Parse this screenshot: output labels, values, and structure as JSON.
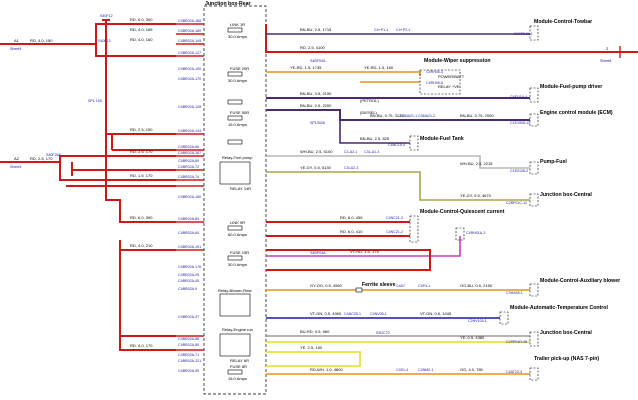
{
  "junction_box_rear": {
    "title": "Junction box-Rear",
    "connector_labels": [
      "C4BR02A-168",
      "C4BR02A-180",
      "C4BR02A-149",
      "C4BR02A-127",
      "C4BR02A-100",
      "C4BR02A-170",
      "C4BR02A-128",
      "C4BR02A-143",
      "C4BR02A-66",
      "C4BR02A-167",
      "C4BR02A-69",
      "C4BR02A-72",
      "C4BR02A-74",
      "C4BR02A-160",
      "C4BR02A-84",
      "C4BR02A-64",
      "C4BR02A-101",
      "C4BR02A-176",
      "C4BR02A-25",
      "C4BR02A-45",
      "C4BR02A-9",
      "C4BR02A-37",
      "C4BR02A-88",
      "C4BR02A-89",
      "C4BR02A-71",
      "C4BR02A-121",
      "C4BR02A-99"
    ],
    "components": {
      "link1": {
        "name": "LINK 1R",
        "rating": "30.0 Amps"
      },
      "fuse_top": {
        "name": "FUSE 20R",
        "rating": "30.0 Amps"
      },
      "fuse_mid": {
        "name": "FUSE 50R",
        "rating": "15.0 Amps"
      },
      "link2": {
        "name": "LINK 5R",
        "rating": "60.0 Amps"
      },
      "fuse_c": {
        "name": "FUSE 15R",
        "rating": "30.0 Amps"
      },
      "fuse_bottom": {
        "name": "FUSE 8R",
        "rating": "15.0 Amps"
      },
      "relay_fuel": "Relay-Fuel pump",
      "relay_fuel_id": "RELAY 14R",
      "relay_blower": "Relay-Blower-Rear",
      "relay_engine": "Relay-Engine run",
      "relay_engine_id": "RELAY 6R"
    }
  },
  "left_inputs": [
    {
      "id": "A1",
      "desc": "Sheet4",
      "wire": "RD, 4.0, 150"
    },
    {
      "id": "A2",
      "desc": "Sheet4",
      "wire": "RD, 2.5, 170"
    }
  ],
  "splices": [
    "S40F12",
    "S40F13",
    "SP1 15X",
    "S40F26A",
    "S4BF04A",
    "S4BP04A",
    "S3DC70",
    "SP13028"
  ],
  "wires": [
    {
      "label": "RD, 6.0, 300"
    },
    {
      "label": "RD, 4.0, 165"
    },
    {
      "label": "RD, 4.0, 160"
    },
    {
      "label": "RD, 2.5, 150"
    },
    {
      "label": "RD, 2.5, 170"
    },
    {
      "label": "RD, 1.5, 170"
    },
    {
      "label": "RD, 6.0, 390"
    },
    {
      "label": "RD, 4.0, 210"
    },
    {
      "label": "RD, 4.0, 170"
    },
    {
      "label": "BN-BU, 2.5, 1715"
    },
    {
      "label": "RD, 2.5, 4100"
    },
    {
      "label": "YE-RD, 1.5, 1735"
    },
    {
      "label": "YE-RD, 1.5, 160"
    },
    {
      "label": "BN-BU, 3.5, 2150"
    },
    {
      "label": "BN-BU, 2.5, 2200"
    },
    {
      "label": "BN-BU, 0.75, 3125"
    },
    {
      "label": "BN-BU, 0.75, 2000"
    },
    {
      "label": "BN-BU, 2.5, 825"
    },
    {
      "label": "WH-BU, 2.5, 5100"
    },
    {
      "label": "YE-GY, 0.5, 5130"
    },
    {
      "label": "WH-BU, 2.5, 2215"
    },
    {
      "label": "YE-GY, 0.5, 4670"
    },
    {
      "label": "RD, 6.0, 455"
    },
    {
      "label": "RD, 6.0, 410"
    },
    {
      "label": "VT-RD, 1.5, 175"
    },
    {
      "label": "GY-OG, 0.5, 4550"
    },
    {
      "label": "OG-BU, 0.5, 2150"
    },
    {
      "label": "VT-GN, 0.5, 4960"
    },
    {
      "label": "VT-GN, 0.5, 1045"
    },
    {
      "label": "BU-RD, 0.5, 960"
    },
    {
      "label": "YE, 0.5, 4380"
    },
    {
      "label": "YE, 2.5, 150"
    },
    {
      "label": "RD-WH, 1.0, 4800"
    },
    {
      "label": "OG, 4.0, 780"
    }
  ],
  "connector_tags": [
    "C4+P1-1",
    "C4+P2-1",
    "C4RH05-3",
    "C4RH05-6",
    "C4NC19-4",
    "C3MA21-1",
    "C3MA21-2",
    "C1-A2-1",
    "C31-A1-3",
    "C3I-A2-3",
    "C4NC21-3",
    "C4NC21-2",
    "C4NC25-1",
    "C4NV05-1",
    "C4A7",
    "C4P4-1",
    "C4S1-4",
    "C4NM2-1"
  ],
  "modules": [
    {
      "name": "Module-Control-Towbar",
      "conn": "C4AT24A-1"
    },
    {
      "name": "Module-Wiper suppression",
      "pins": [
        "POWER/BATT",
        "RELAY +VE"
      ],
      "conn": "C4RH05"
    },
    {
      "name": "Module-Fuel-pump driver",
      "conn": "C4EU1A-4"
    },
    {
      "name": "Engine control module (ECM)",
      "conn": "C1E1908-12"
    },
    {
      "name": "Module-Fuel Tank",
      "conn": "C4MC11B-4"
    },
    {
      "name": "Pump-Fuel",
      "conn": "C1E0108-2"
    },
    {
      "name": "Junction box-Central",
      "conn": "C2BP01C-12"
    },
    {
      "name": "Module-Control-Quiescent current",
      "conn": "C4RH01A-3"
    },
    {
      "name": "Module-Control-Auxiliary blower",
      "conn": "C3HA05-1"
    },
    {
      "name": "Ferrite sleeve",
      "conn": ""
    },
    {
      "name": "Module-Automatic-Temperature Control",
      "conn": "C2HV105-1"
    },
    {
      "name": "Junction box-Central",
      "conn": "C2SP01D-28"
    },
    {
      "name": "Trailer pick-up (NAS 7-pin)",
      "conn": "C4AT23-4"
    }
  ],
  "annotations": [
    "(PETROL)",
    "(DIESEL)"
  ],
  "right_outputs": [
    {
      "id": "2",
      "desc": "Sheet8"
    }
  ],
  "colors": {
    "red": "#d01818",
    "brown_blue": "#4b2a6e",
    "yellow": "#e8e23c",
    "olive": "#a6a64a",
    "purple": "#c040c0",
    "lightgray": "#b8b8b8",
    "blue": "#1a1aa8",
    "orange": "#e59020",
    "gray": "#888888"
  }
}
